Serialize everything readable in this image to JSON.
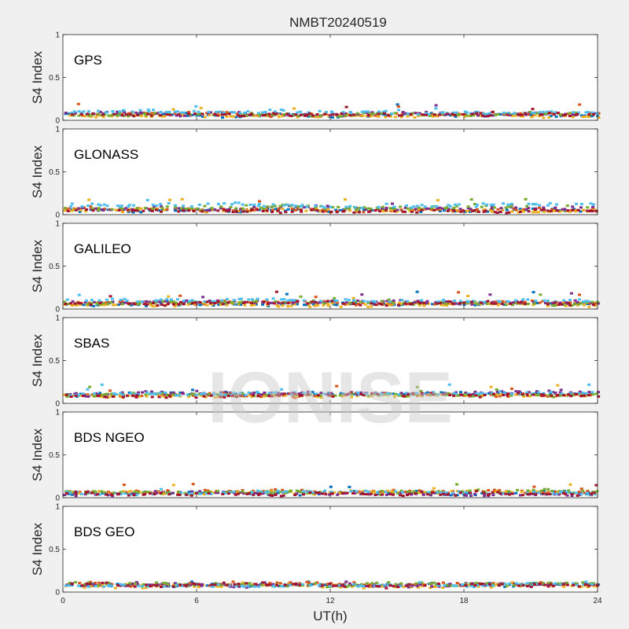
{
  "chart_data": {
    "type": "scatter",
    "title": "NMBT20240519",
    "xlabel": "UT(h)",
    "ylabel": "S4 Index",
    "xlim": [
      0,
      24
    ],
    "ylim": [
      0,
      1
    ],
    "xticks": [
      "0",
      "6",
      "12",
      "18",
      "24"
    ],
    "yticks": [
      "0",
      "0.5",
      "1"
    ],
    "watermark": "IONISE",
    "palette": [
      "#0072bd",
      "#d95319",
      "#edb120",
      "#7e2f8e",
      "#77ac30",
      "#4dbeee",
      "#a2142f"
    ],
    "panels": [
      {
        "name": "GPS",
        "base": [
          0.06,
          0.07,
          0.05,
          0.08,
          0.06,
          0.09,
          0.07
        ],
        "max": 0.2
      },
      {
        "name": "GLONASS",
        "base": [
          0.05,
          0.06,
          0.05,
          0.07,
          0.08,
          0.11,
          0.05
        ],
        "max": 0.18
      },
      {
        "name": "GALILEO",
        "base": [
          0.06,
          0.07,
          0.05,
          0.08,
          0.07,
          0.1,
          0.06
        ],
        "max": 0.2
      },
      {
        "name": "SBAS",
        "base": [
          0.11,
          0.1,
          0.09,
          0.12,
          0.1,
          0.11,
          0.1
        ],
        "max": 0.22
      },
      {
        "name": "BDS NGEO",
        "base": [
          0.06,
          0.07,
          0.06,
          0.05,
          0.07,
          0.06,
          0.05
        ],
        "max": 0.17
      },
      {
        "name": "BDS GEO",
        "base": [
          0.08,
          0.09,
          0.07,
          0.08,
          0.09,
          0.08,
          0.08
        ],
        "max": 0.12
      }
    ]
  }
}
